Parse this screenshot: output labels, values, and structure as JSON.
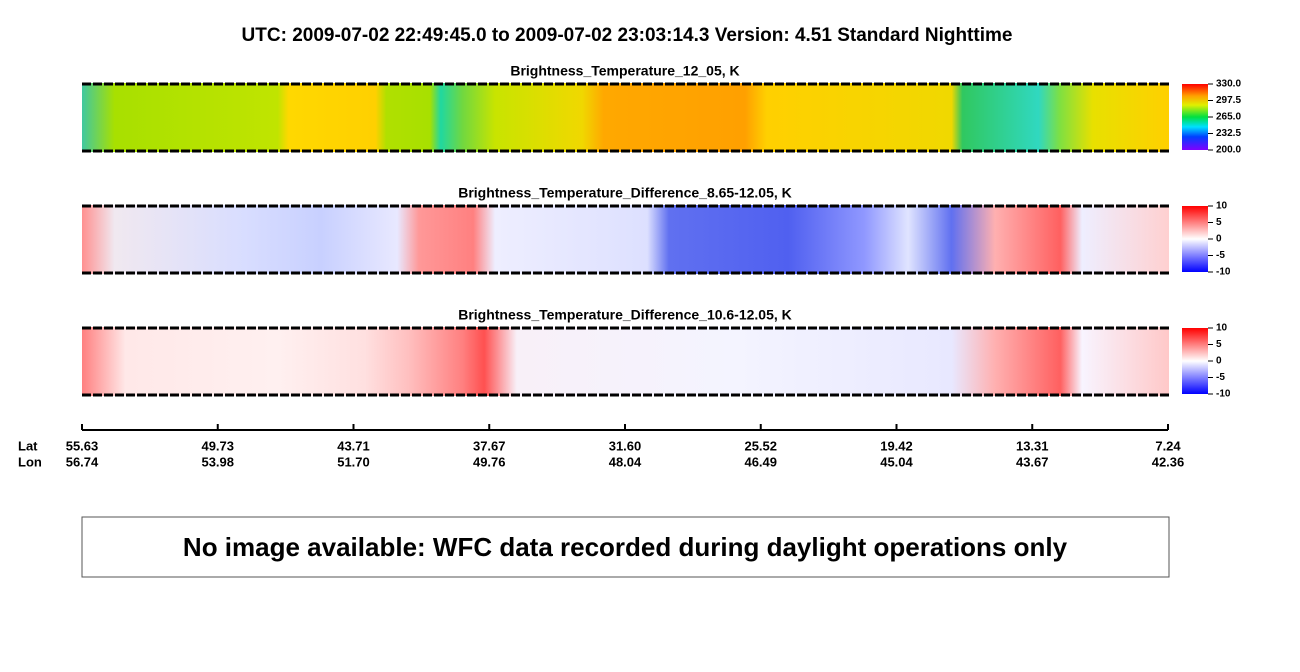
{
  "title": "UTC:  2009-07-02   22:49:45.0  to  2009-07-02   23:03:14.3    Version: 4.51  Standard Nighttime",
  "panels": [
    {
      "title": "Brightness_Temperature_12_05, K",
      "colorbar": {
        "lim": [
          200,
          330
        ],
        "ticks": [
          {
            "value": 330,
            "label": "330.0"
          },
          {
            "value": 297.5,
            "label": "297.5"
          },
          {
            "value": 265,
            "label": "265.0"
          },
          {
            "value": 232.5,
            "label": "232.5"
          },
          {
            "value": 200,
            "label": "200.0"
          }
        ]
      }
    },
    {
      "title": "Brightness_Temperature_Difference_8.65-12.05, K",
      "colorbar": {
        "lim": [
          -10,
          10
        ],
        "ticks": [
          10,
          5,
          0,
          -5,
          -10
        ]
      }
    },
    {
      "title": "Brightness_Temperature_Difference_10.6-12.05, K",
      "colorbar": {
        "lim": [
          -10,
          10
        ],
        "ticks": [
          10,
          5,
          0,
          -5,
          -10
        ]
      }
    }
  ],
  "axis": {
    "lat_label": "Lat",
    "lon_label": "Lon",
    "lat": [
      "55.63",
      "49.73",
      "43.71",
      "37.67",
      "31.60",
      "25.52",
      "19.42",
      "13.31",
      "7.24"
    ],
    "lon": [
      "56.74",
      "53.98",
      "51.70",
      "49.76",
      "48.04",
      "46.49",
      "45.04",
      "43.67",
      "42.36"
    ]
  },
  "message": "No image available: WFC data recorded during daylight operations only"
}
